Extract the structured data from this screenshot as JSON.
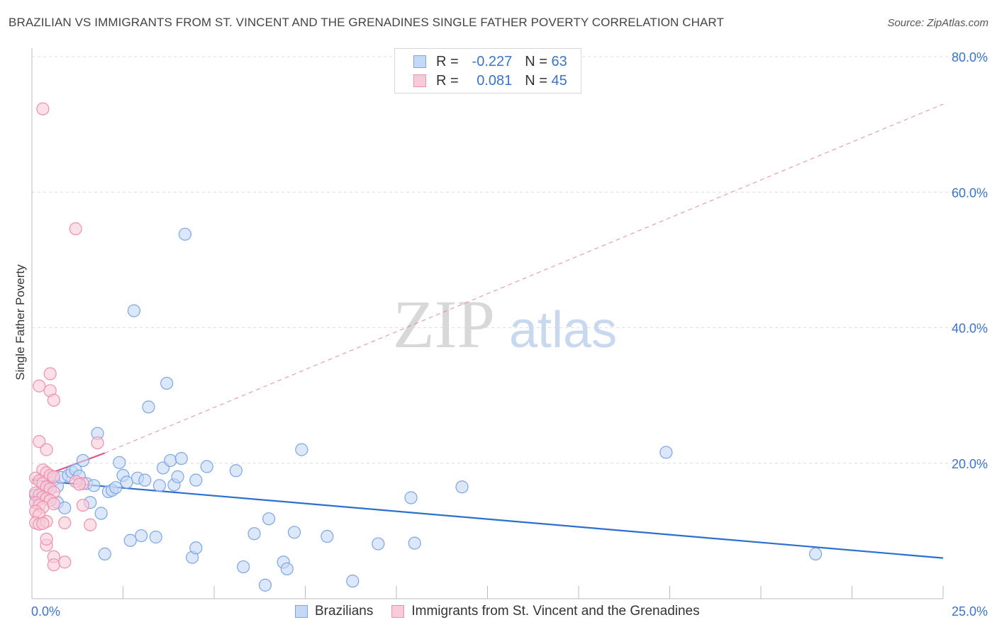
{
  "title": "BRAZILIAN VS IMMIGRANTS FROM ST. VINCENT AND THE GRENADINES SINGLE FATHER POVERTY CORRELATION CHART",
  "source": "Source: ZipAtlas.com",
  "watermark": {
    "zip": "ZIP",
    "atlas": "atlas"
  },
  "colors": {
    "blue_fill": "#c5d8f5",
    "blue_stroke": "#7aa6e6",
    "blue_line": "#2c6fce",
    "pink_fill": "#f9cbd8",
    "pink_stroke": "#ef8fae",
    "pink_line": "#e0578a",
    "grid": "#dedede",
    "tick_label": "#3b75c8"
  },
  "legend": {
    "rows": [
      {
        "r_label": "R =",
        "r_value": "-0.227",
        "n_label": "N =",
        "n_value": "63"
      },
      {
        "r_label": "R =",
        "r_value": "0.081",
        "n_label": "N =",
        "n_value": "45"
      }
    ],
    "series_labels": [
      "Brazilians",
      "Immigrants from St. Vincent and the Grenadines"
    ]
  },
  "chart_data": {
    "type": "scatter",
    "title": "BRAZILIAN VS IMMIGRANTS FROM ST. VINCENT AND THE GRENADINES SINGLE FATHER POVERTY CORRELATION CHART",
    "xlabel": "",
    "ylabel": "Single Father Poverty",
    "xlim": [
      0,
      25
    ],
    "ylim": [
      0,
      80
    ],
    "x_tick_labels": [
      "0.0%",
      "25.0%"
    ],
    "y_ticks": [
      20,
      40,
      60,
      80
    ],
    "y_tick_labels": [
      "20.0%",
      "40.0%",
      "60.0%",
      "80.0%"
    ],
    "grid": true,
    "legend_position": "top-center",
    "series": [
      {
        "name": "Brazilians",
        "r": -0.227,
        "n": 63,
        "trend": {
          "x": [
            0,
            25
          ],
          "y": [
            17.5,
            6.0
          ],
          "style": "solid"
        },
        "points": [
          [
            0.1,
            15.3
          ],
          [
            0.2,
            14.7
          ],
          [
            0.3,
            15.8
          ],
          [
            0.4,
            16.3
          ],
          [
            0.5,
            17.2
          ],
          [
            0.6,
            17.5
          ],
          [
            0.7,
            16.6
          ],
          [
            0.7,
            14.2
          ],
          [
            0.8,
            17.9
          ],
          [
            0.9,
            13.4
          ],
          [
            1.0,
            18.2
          ],
          [
            1.1,
            18.7
          ],
          [
            1.2,
            19.0
          ],
          [
            1.3,
            18.1
          ],
          [
            1.4,
            20.4
          ],
          [
            1.5,
            17.0
          ],
          [
            1.6,
            14.2
          ],
          [
            1.7,
            16.7
          ],
          [
            1.8,
            24.4
          ],
          [
            1.9,
            12.6
          ],
          [
            2.0,
            6.6
          ],
          [
            2.1,
            15.8
          ],
          [
            2.2,
            16.0
          ],
          [
            2.3,
            16.4
          ],
          [
            2.4,
            20.1
          ],
          [
            2.5,
            18.2
          ],
          [
            2.6,
            17.2
          ],
          [
            2.7,
            8.6
          ],
          [
            2.8,
            42.5
          ],
          [
            2.9,
            17.8
          ],
          [
            3.0,
            9.3
          ],
          [
            3.1,
            17.5
          ],
          [
            3.2,
            28.3
          ],
          [
            3.4,
            9.1
          ],
          [
            3.5,
            16.7
          ],
          [
            3.6,
            19.3
          ],
          [
            3.7,
            31.8
          ],
          [
            3.8,
            20.4
          ],
          [
            3.9,
            16.8
          ],
          [
            4.0,
            18.0
          ],
          [
            4.1,
            20.7
          ],
          [
            4.2,
            53.8
          ],
          [
            4.4,
            6.1
          ],
          [
            4.5,
            17.5
          ],
          [
            4.5,
            7.5
          ],
          [
            4.8,
            19.5
          ],
          [
            5.6,
            18.9
          ],
          [
            5.8,
            4.7
          ],
          [
            6.1,
            9.6
          ],
          [
            6.4,
            2.0
          ],
          [
            6.5,
            11.8
          ],
          [
            6.9,
            5.4
          ],
          [
            7.0,
            4.4
          ],
          [
            7.2,
            9.8
          ],
          [
            7.4,
            22.0
          ],
          [
            8.1,
            9.2
          ],
          [
            8.8,
            2.6
          ],
          [
            9.5,
            8.1
          ],
          [
            10.4,
            14.9
          ],
          [
            10.5,
            8.2
          ],
          [
            11.8,
            16.5
          ],
          [
            17.4,
            21.6
          ],
          [
            21.5,
            6.6
          ]
        ]
      },
      {
        "name": "Immigrants from St. Vincent and the Grenadines",
        "r": 0.081,
        "n": 45,
        "trend": {
          "x": [
            0,
            2.0
          ],
          "y": [
            17.5,
            21.5
          ],
          "style": "solid",
          "extended": {
            "x": [
              2.0,
              25
            ],
            "y": [
              21.5,
              73.0
            ],
            "style": "dashed"
          }
        },
        "points": [
          [
            0.3,
            72.3
          ],
          [
            1.2,
            54.6
          ],
          [
            0.5,
            33.2
          ],
          [
            0.2,
            31.4
          ],
          [
            0.5,
            30.7
          ],
          [
            0.6,
            29.3
          ],
          [
            0.2,
            23.2
          ],
          [
            0.4,
            22.0
          ],
          [
            1.8,
            23.0
          ],
          [
            0.3,
            19.0
          ],
          [
            0.4,
            18.6
          ],
          [
            0.5,
            18.2
          ],
          [
            0.6,
            18.0
          ],
          [
            0.1,
            17.8
          ],
          [
            0.2,
            17.4
          ],
          [
            0.3,
            17.0
          ],
          [
            0.4,
            16.5
          ],
          [
            0.5,
            16.2
          ],
          [
            0.6,
            15.7
          ],
          [
            0.1,
            15.6
          ],
          [
            0.2,
            15.3
          ],
          [
            0.3,
            15.0
          ],
          [
            0.4,
            14.8
          ],
          [
            0.5,
            14.5
          ],
          [
            0.1,
            14.2
          ],
          [
            0.2,
            13.8
          ],
          [
            0.3,
            13.5
          ],
          [
            0.1,
            12.9
          ],
          [
            0.2,
            12.4
          ],
          [
            0.6,
            14.0
          ],
          [
            1.4,
            17.0
          ],
          [
            1.2,
            17.3
          ],
          [
            1.3,
            16.9
          ],
          [
            1.4,
            13.8
          ],
          [
            1.6,
            10.9
          ],
          [
            0.1,
            11.2
          ],
          [
            0.2,
            11.0
          ],
          [
            0.4,
            11.4
          ],
          [
            0.3,
            11.1
          ],
          [
            0.9,
            11.2
          ],
          [
            0.4,
            7.9
          ],
          [
            0.4,
            8.8
          ],
          [
            0.6,
            6.2
          ],
          [
            0.6,
            5.0
          ],
          [
            0.9,
            5.4
          ]
        ]
      }
    ]
  }
}
